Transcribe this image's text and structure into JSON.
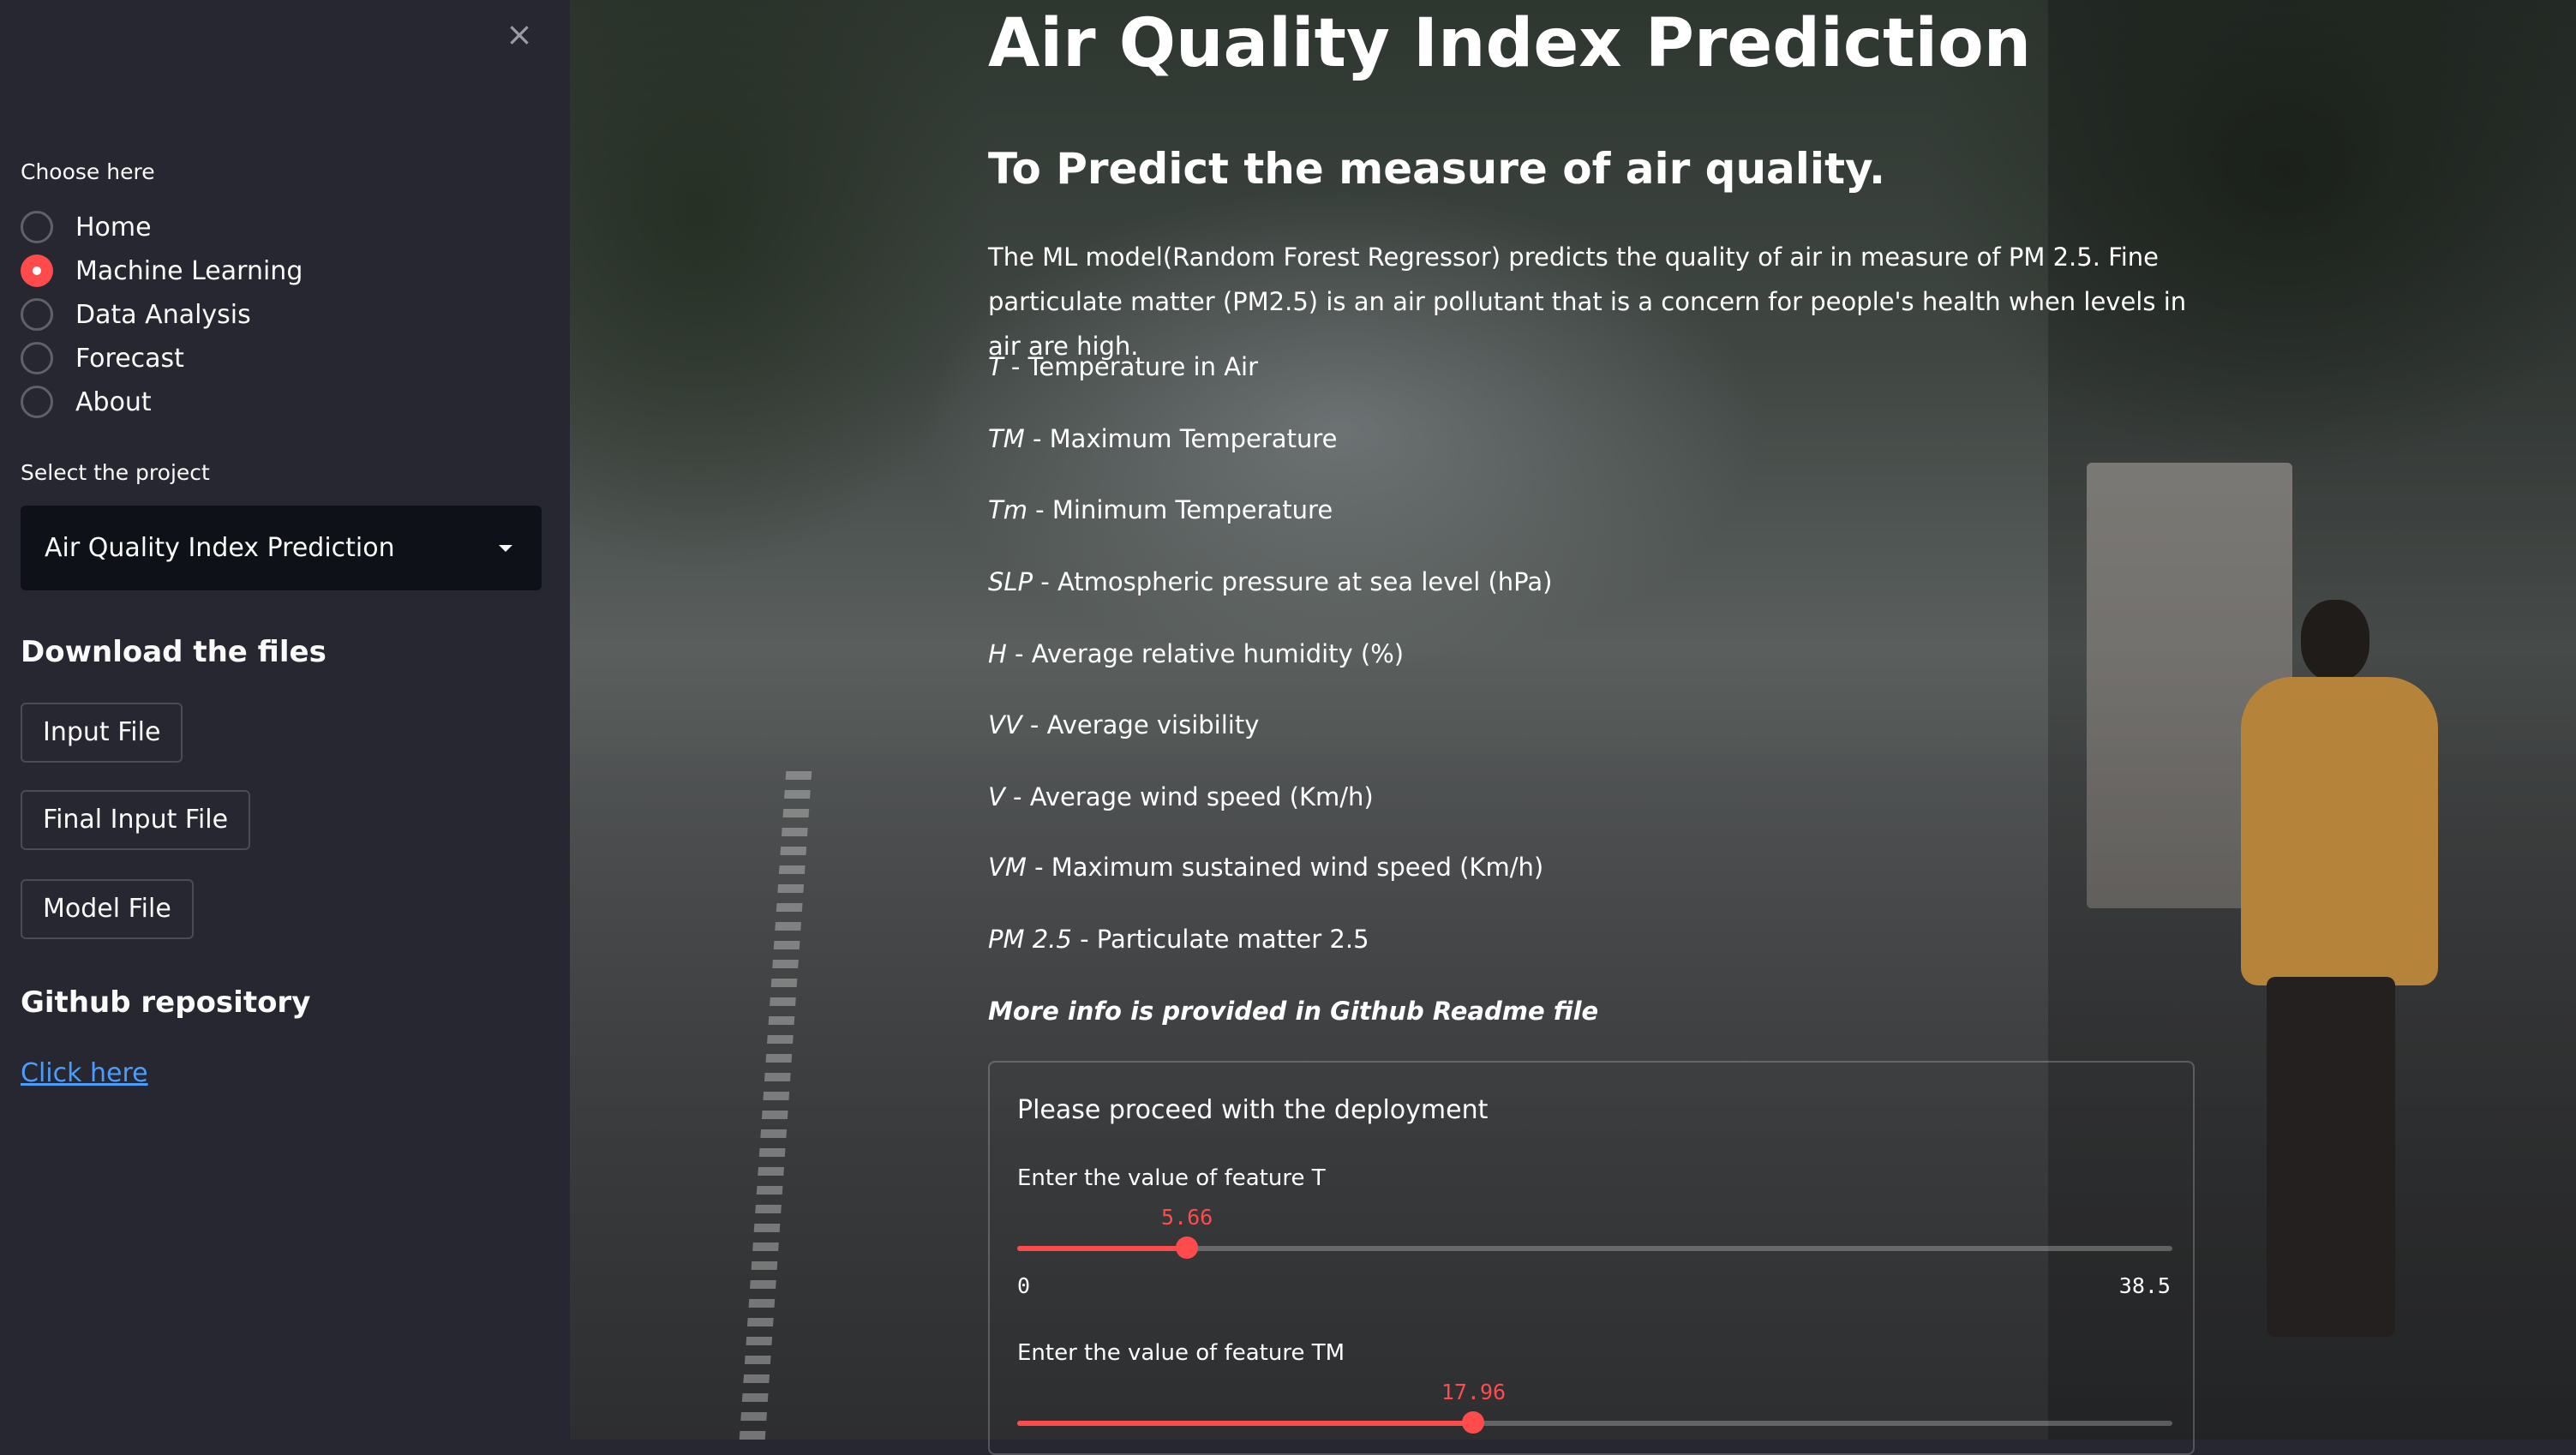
{
  "sidebar": {
    "close_icon": "×",
    "choose_label": "Choose here",
    "nav_options": [
      {
        "label": "Home",
        "selected": false
      },
      {
        "label": "Machine Learning",
        "selected": true
      },
      {
        "label": "Data Analysis",
        "selected": false
      },
      {
        "label": "Forecast",
        "selected": false
      },
      {
        "label": "About",
        "selected": false
      }
    ],
    "project_label": "Select the project",
    "project_value": "Air Quality Index Prediction",
    "download_heading": "Download the files",
    "download_buttons": [
      "Input File",
      "Final Input File",
      "Model File"
    ],
    "github_heading": "Github repository",
    "github_link": "Click here"
  },
  "main": {
    "title": "Air Quality Index Prediction",
    "subtitle": "To Predict the measure of air quality.",
    "description": "The ML model(Random Forest Regressor) predicts the quality of air in measure of PM 2.5. Fine particulate matter (PM2.5) is an air pollutant that is a concern for people's health when levels in air are high.",
    "features": [
      {
        "abbr": "T",
        "desc": " - Temperature in Air"
      },
      {
        "abbr": "TM",
        "desc": " - Maximum Temperature"
      },
      {
        "abbr": "Tm",
        "desc": " - Minimum Temperature"
      },
      {
        "abbr": "SLP",
        "desc": " - Atmospheric pressure at sea level (hPa)"
      },
      {
        "abbr": "H",
        "desc": " - Average relative humidity (%)"
      },
      {
        "abbr": "VV",
        "desc": " - Average visibility"
      },
      {
        "abbr": "V",
        "desc": " - Average wind speed (Km/h)"
      },
      {
        "abbr": "VM",
        "desc": " - Maximum sustained wind speed (Km/h)"
      },
      {
        "abbr": "PM 2.5",
        "desc": " - Particulate matter 2.5"
      }
    ],
    "more_info": "More info is provided in Github Readme file",
    "deployment": {
      "title": "Please proceed with the deployment",
      "sliders": [
        {
          "label": "Enter the value of feature T",
          "value": "5.66",
          "min": "0",
          "max": "38.5",
          "fraction": 0.147
        },
        {
          "label": "Enter the value of feature TM",
          "value": "17.96",
          "fraction": 0.395
        }
      ]
    }
  },
  "colors": {
    "accent": "#ff4b4b",
    "sidebar_bg": "#262730",
    "select_bg": "#0e1117",
    "link": "#4b9dfc"
  }
}
